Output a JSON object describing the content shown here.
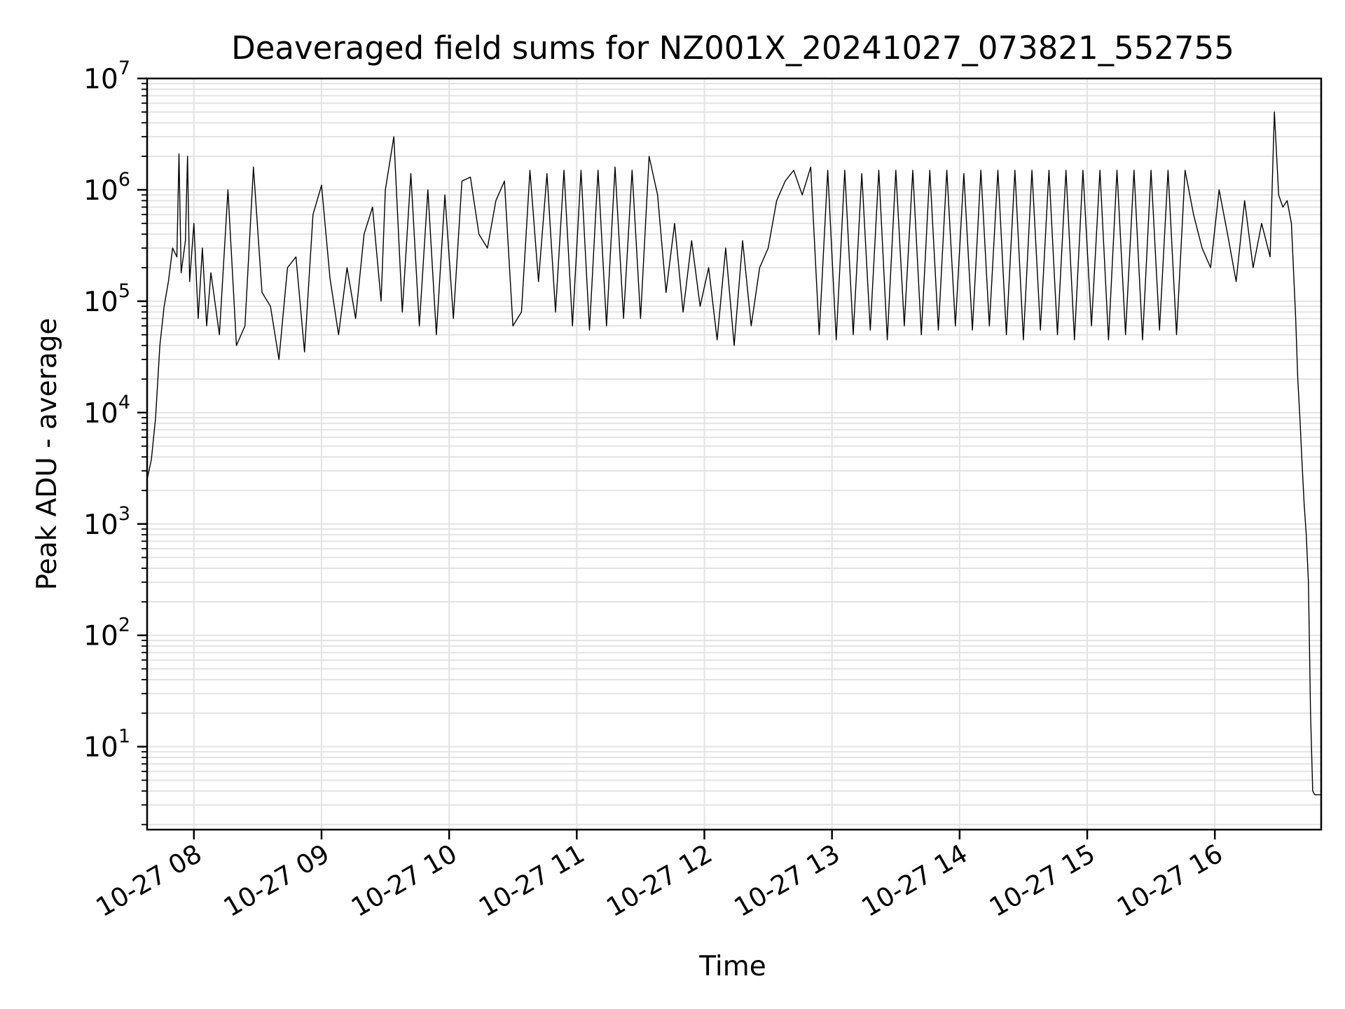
{
  "chart_data": {
    "type": "line",
    "title": "Deaveraged field sums for NZ001X_20241027_073821_552755",
    "xlabel": "Time",
    "ylabel": "Peak ADU - average",
    "yscale": "log",
    "xlim": [
      "10-27 07:38",
      "10-27 16:50"
    ],
    "ylim": [
      1.8,
      10000000
    ],
    "grid": true,
    "legend": "none",
    "line_color": "#000000",
    "x_ticks": [
      {
        "label": "10-27 08",
        "value": "10-27 08:00"
      },
      {
        "label": "10-27 09",
        "value": "10-27 09:00"
      },
      {
        "label": "10-27 10",
        "value": "10-27 10:00"
      },
      {
        "label": "10-27 11",
        "value": "10-27 11:00"
      },
      {
        "label": "10-27 12",
        "value": "10-27 12:00"
      },
      {
        "label": "10-27 13",
        "value": "10-27 13:00"
      },
      {
        "label": "10-27 14",
        "value": "10-27 14:00"
      },
      {
        "label": "10-27 15",
        "value": "10-27 15:00"
      },
      {
        "label": "10-27 16",
        "value": "10-27 16:00"
      }
    ],
    "y_ticks": [
      {
        "base": "10",
        "exp": "1",
        "value": 10
      },
      {
        "base": "10",
        "exp": "2",
        "value": 100
      },
      {
        "base": "10",
        "exp": "3",
        "value": 1000
      },
      {
        "base": "10",
        "exp": "4",
        "value": 10000
      },
      {
        "base": "10",
        "exp": "5",
        "value": 100000
      },
      {
        "base": "10",
        "exp": "6",
        "value": 1000000
      },
      {
        "base": "10",
        "exp": "7",
        "value": 10000000
      }
    ],
    "series": [
      {
        "x": [
          "10-27 07:38",
          "10-27 07:40",
          "10-27 07:42",
          "10-27 07:44",
          "10-27 07:46",
          "10-27 07:48",
          "10-27 07:50",
          "10-27 07:52",
          "10-27 07:53",
          "10-27 07:54",
          "10-27 07:56",
          "10-27 07:57",
          "10-27 07:58",
          "10-27 08:00",
          "10-27 08:02",
          "10-27 08:04",
          "10-27 08:06",
          "10-27 08:08",
          "10-27 08:12",
          "10-27 08:16",
          "10-27 08:20",
          "10-27 08:24",
          "10-27 08:28",
          "10-27 08:32",
          "10-27 08:36",
          "10-27 08:40",
          "10-27 08:44",
          "10-27 08:48",
          "10-27 08:52",
          "10-27 08:56",
          "10-27 09:00",
          "10-27 09:04",
          "10-27 09:08",
          "10-27 09:12",
          "10-27 09:16",
          "10-27 09:20",
          "10-27 09:24",
          "10-27 09:28",
          "10-27 09:30",
          "10-27 09:34",
          "10-27 09:38",
          "10-27 09:42",
          "10-27 09:46",
          "10-27 09:50",
          "10-27 09:54",
          "10-27 09:58",
          "10-27 10:02",
          "10-27 10:06",
          "10-27 10:10",
          "10-27 10:14",
          "10-27 10:18",
          "10-27 10:22",
          "10-27 10:26",
          "10-27 10:30",
          "10-27 10:34",
          "10-27 10:38",
          "10-27 10:42",
          "10-27 10:46",
          "10-27 10:50",
          "10-27 10:54",
          "10-27 10:58",
          "10-27 11:02",
          "10-27 11:06",
          "10-27 11:10",
          "10-27 11:14",
          "10-27 11:18",
          "10-27 11:22",
          "10-27 11:26",
          "10-27 11:30",
          "10-27 11:34",
          "10-27 11:38",
          "10-27 11:42",
          "10-27 11:46",
          "10-27 11:50",
          "10-27 11:54",
          "10-27 11:58",
          "10-27 12:02",
          "10-27 12:06",
          "10-27 12:10",
          "10-27 12:14",
          "10-27 12:18",
          "10-27 12:22",
          "10-27 12:26",
          "10-27 12:30",
          "10-27 12:34",
          "10-27 12:38",
          "10-27 12:42",
          "10-27 12:46",
          "10-27 12:50",
          "10-27 12:54",
          "10-27 12:58",
          "10-27 13:02",
          "10-27 13:06",
          "10-27 13:10",
          "10-27 13:14",
          "10-27 13:18",
          "10-27 13:22",
          "10-27 13:26",
          "10-27 13:30",
          "10-27 13:34",
          "10-27 13:38",
          "10-27 13:42",
          "10-27 13:46",
          "10-27 13:50",
          "10-27 13:54",
          "10-27 13:58",
          "10-27 14:02",
          "10-27 14:06",
          "10-27 14:10",
          "10-27 14:14",
          "10-27 14:18",
          "10-27 14:22",
          "10-27 14:26",
          "10-27 14:30",
          "10-27 14:34",
          "10-27 14:38",
          "10-27 14:42",
          "10-27 14:46",
          "10-27 14:50",
          "10-27 14:54",
          "10-27 14:58",
          "10-27 15:02",
          "10-27 15:06",
          "10-27 15:10",
          "10-27 15:14",
          "10-27 15:18",
          "10-27 15:22",
          "10-27 15:26",
          "10-27 15:30",
          "10-27 15:34",
          "10-27 15:38",
          "10-27 15:42",
          "10-27 15:46",
          "10-27 15:50",
          "10-27 15:54",
          "10-27 15:58",
          "10-27 16:02",
          "10-27 16:06",
          "10-27 16:10",
          "10-27 16:14",
          "10-27 16:18",
          "10-27 16:22",
          "10-27 16:26",
          "10-27 16:28",
          "10-27 16:30",
          "10-27 16:32",
          "10-27 16:34",
          "10-27 16:36",
          "10-27 16:38",
          "10-27 16:39",
          "10-27 16:40",
          "10-27 16:41",
          "10-27 16:42",
          "10-27 16:43",
          "10-27 16:44",
          "10-27 16:45",
          "10-27 16:46",
          "10-27 16:47",
          "10-27 16:48",
          "10-27 16:50"
        ],
        "y": [
          2500,
          3800,
          9000,
          40000,
          90000,
          150000,
          300000,
          250000,
          2100000,
          180000,
          350000,
          2000000,
          150000,
          500000,
          70000,
          300000,
          60000,
          180000,
          50000,
          1000000,
          40000,
          60000,
          1600000,
          120000,
          90000,
          30000,
          200000,
          250000,
          35000,
          600000,
          1100000,
          160000,
          50000,
          200000,
          70000,
          400000,
          700000,
          100000,
          1000000,
          3000000,
          80000,
          1400000,
          60000,
          1000000,
          50000,
          900000,
          70000,
          1200000,
          1300000,
          400000,
          300000,
          800000,
          1200000,
          60000,
          80000,
          1500000,
          150000,
          1400000,
          80000,
          1500000,
          60000,
          1500000,
          55000,
          1500000,
          60000,
          1600000,
          70000,
          1500000,
          70000,
          2000000,
          900000,
          120000,
          500000,
          80000,
          350000,
          90000,
          200000,
          45000,
          300000,
          40000,
          350000,
          60000,
          200000,
          300000,
          800000,
          1200000,
          1500000,
          900000,
          1600000,
          50000,
          1500000,
          45000,
          1500000,
          50000,
          1400000,
          55000,
          1500000,
          45000,
          1500000,
          60000,
          1500000,
          50000,
          1500000,
          55000,
          1500000,
          60000,
          1400000,
          55000,
          1500000,
          60000,
          1500000,
          50000,
          1500000,
          45000,
          1500000,
          55000,
          1500000,
          50000,
          1500000,
          45000,
          1500000,
          60000,
          1500000,
          45000,
          1500000,
          50000,
          1500000,
          45000,
          1500000,
          55000,
          1500000,
          50000,
          1500000,
          600000,
          300000,
          200000,
          1000000,
          400000,
          150000,
          800000,
          200000,
          500000,
          250000,
          5000000,
          900000,
          700000,
          800000,
          500000,
          70000,
          20000,
          9000,
          3500,
          1500,
          800,
          300,
          20,
          4,
          3.7,
          3.7,
          3.7
        ]
      }
    ]
  }
}
